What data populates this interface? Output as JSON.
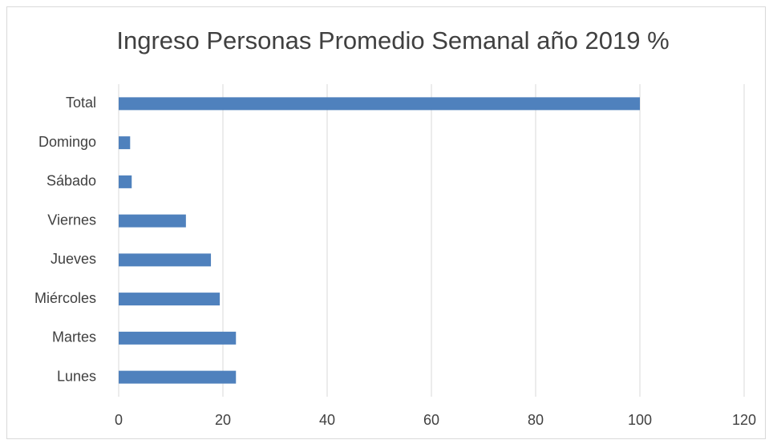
{
  "chart_data": {
    "type": "barh",
    "title": "Ingreso Personas Promedio Semanal año 2019 %",
    "categories": [
      "Lunes",
      "Martes",
      "Miércoles",
      "Jueves",
      "Viernes",
      "Sábado",
      "Domingo",
      "Total"
    ],
    "values": [
      22.5,
      22.5,
      19.4,
      17.7,
      12.9,
      2.5,
      2.2,
      100
    ],
    "color": "#4f81bd",
    "xlim": [
      0,
      120
    ],
    "xticks": [
      0,
      20,
      40,
      60,
      80,
      100,
      120
    ],
    "grid": true
  }
}
